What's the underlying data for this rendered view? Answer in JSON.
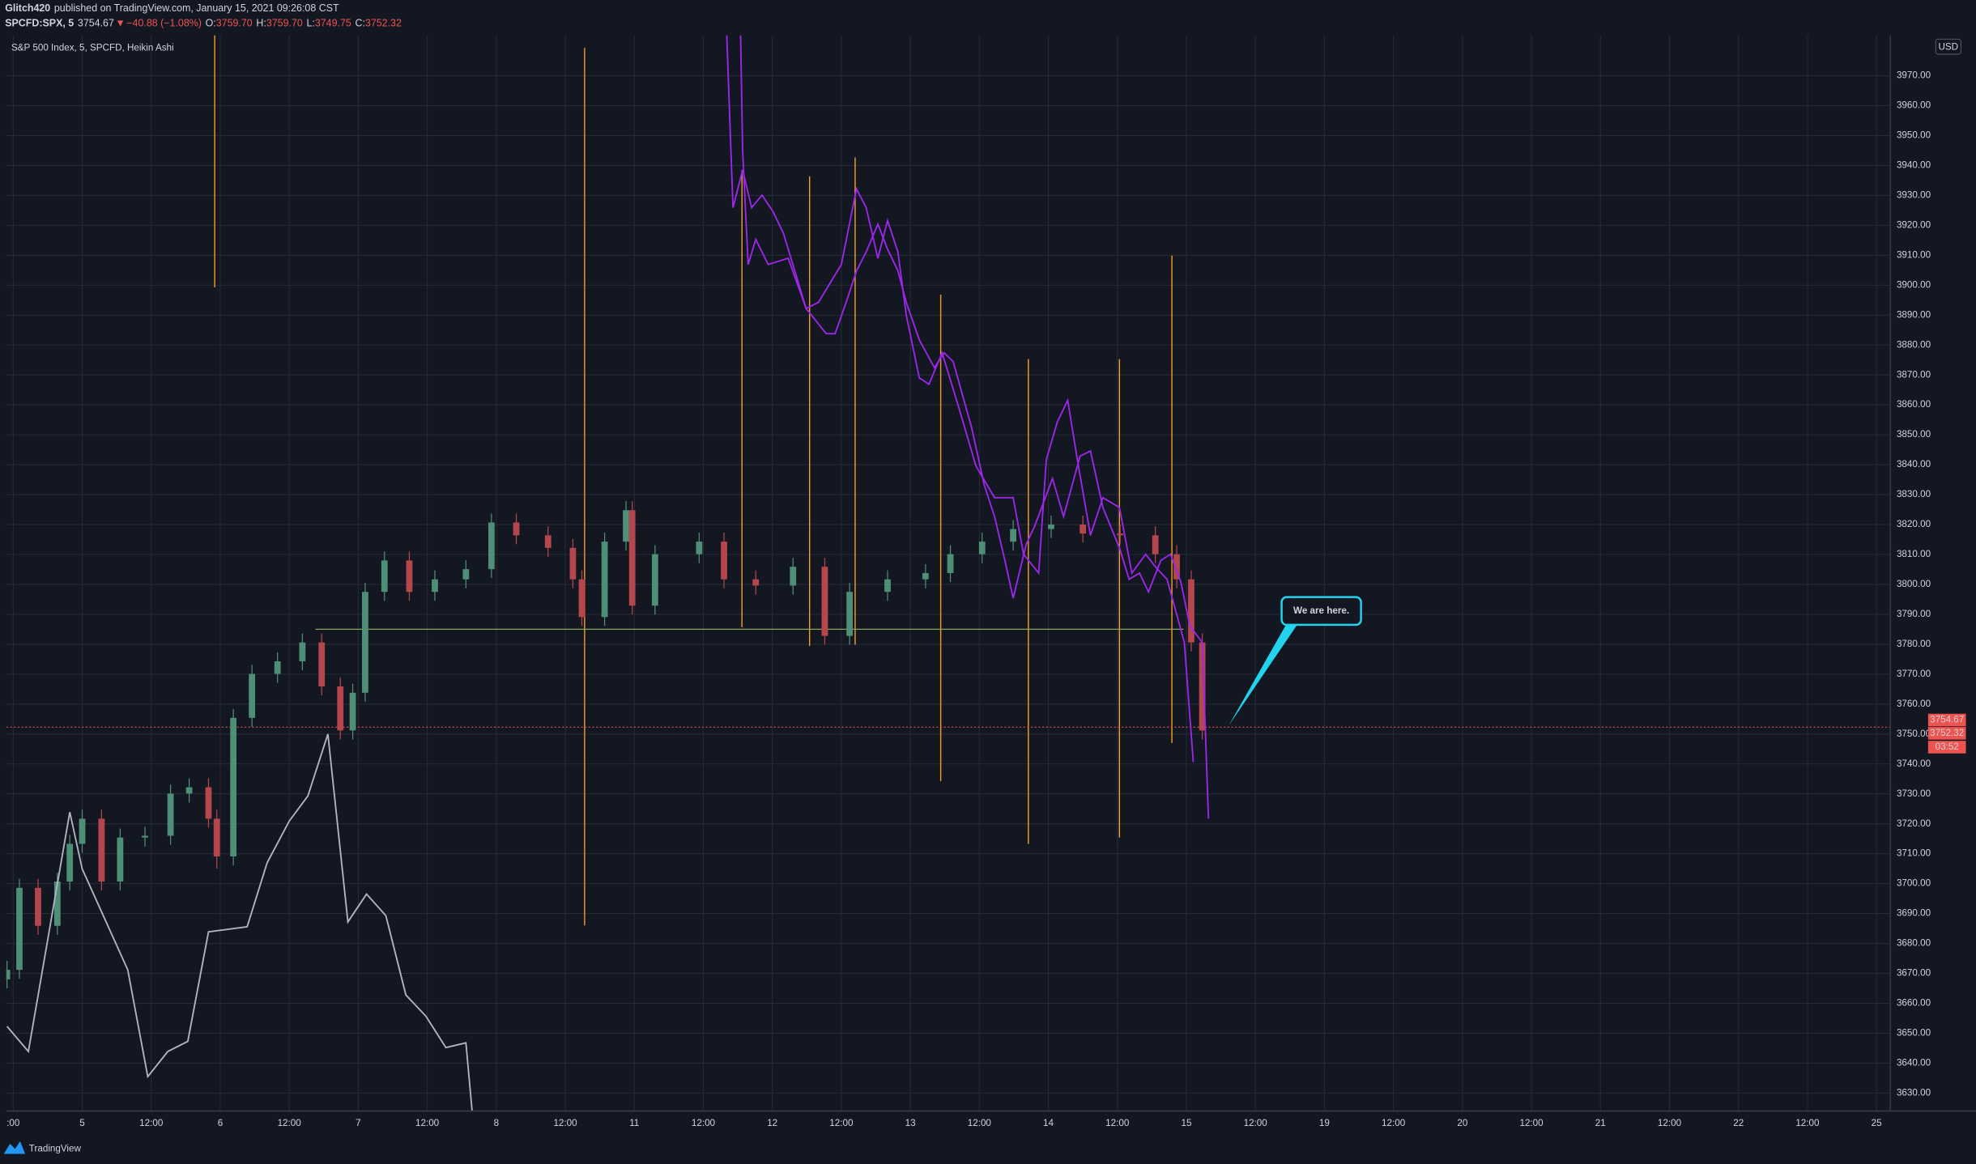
{
  "header": {
    "author": "Glitch420",
    "published": "published on TradingView.com, January 15, 2021 09:26:08 CST",
    "symbol": "SPCFD:SPX, 5",
    "price": "3754.67",
    "change": "−40.88 (−1.08%)",
    "ohlc": [
      [
        "O:",
        "3759.70"
      ],
      [
        "H:",
        "3759.70"
      ],
      [
        "L:",
        "3749.75"
      ],
      [
        "C:",
        "3752.32"
      ]
    ]
  },
  "footer": {
    "brand": "TradingView"
  },
  "chart_data": {
    "type": "candlestick",
    "title": "S&P 500 Index, 5, SPCFD, Heikin Ashi",
    "currency": "USD",
    "annotation": "We are here.",
    "countdown": "03:52",
    "grid": true,
    "xlim": [
      -0.1,
      27.2
    ],
    "ylim": [
      3624,
      3983.5
    ],
    "xticks": [
      {
        "value": 0,
        "label": ":00"
      },
      {
        "value": 1,
        "label": "5"
      },
      {
        "value": 2,
        "label": "12:00"
      },
      {
        "value": 3,
        "label": "6"
      },
      {
        "value": 4,
        "label": "12:00"
      },
      {
        "value": 5,
        "label": "7"
      },
      {
        "value": 6,
        "label": "12:00"
      },
      {
        "value": 7,
        "label": "8"
      },
      {
        "value": 8,
        "label": "12:00"
      },
      {
        "value": 9,
        "label": "11"
      },
      {
        "value": 10,
        "label": "12:00"
      },
      {
        "value": 11,
        "label": "12"
      },
      {
        "value": 12,
        "label": "12:00"
      },
      {
        "value": 13,
        "label": "13"
      },
      {
        "value": 14,
        "label": "12:00"
      },
      {
        "value": 15,
        "label": "14"
      },
      {
        "value": 16,
        "label": "12:00"
      },
      {
        "value": 17,
        "label": "15"
      },
      {
        "value": 18,
        "label": "12:00"
      },
      {
        "value": 19,
        "label": "19"
      },
      {
        "value": 20,
        "label": "12:00"
      },
      {
        "value": 21,
        "label": "20"
      },
      {
        "value": 22,
        "label": "12:00"
      },
      {
        "value": 23,
        "label": "21"
      },
      {
        "value": 24,
        "label": "12:00"
      },
      {
        "value": 25,
        "label": "22"
      },
      {
        "value": 26,
        "label": "12:00"
      },
      {
        "value": 27,
        "label": "25"
      }
    ],
    "yticks": [
      {
        "value": 3630,
        "label": "3630.00"
      },
      {
        "value": 3640,
        "label": "3640.00"
      },
      {
        "value": 3650,
        "label": "3650.00"
      },
      {
        "value": 3660,
        "label": "3660.00"
      },
      {
        "value": 3670,
        "label": "3670.00"
      },
      {
        "value": 3680,
        "label": "3680.00"
      },
      {
        "value": 3690,
        "label": "3690.00"
      },
      {
        "value": 3700,
        "label": "3700.00"
      },
      {
        "value": 3710,
        "label": "3710.00"
      },
      {
        "value": 3720,
        "label": "3720.00"
      },
      {
        "value": 3730,
        "label": "3730.00"
      },
      {
        "value": 3740,
        "label": "3740.00"
      },
      {
        "value": 3750,
        "label": "3750.00"
      },
      {
        "value": 3760,
        "label": "3760.00"
      },
      {
        "value": 3770,
        "label": "3770.00"
      },
      {
        "value": 3780,
        "label": "3780.00"
      },
      {
        "value": 3790,
        "label": "3790.00"
      },
      {
        "value": 3800,
        "label": "3800.00"
      },
      {
        "value": 3810,
        "label": "3810.00"
      },
      {
        "value": 3820,
        "label": "3820.00"
      },
      {
        "value": 3830,
        "label": "3830.00"
      },
      {
        "value": 3840,
        "label": "3840.00"
      },
      {
        "value": 3850,
        "label": "3850.00"
      },
      {
        "value": 3860,
        "label": "3860.00"
      },
      {
        "value": 3870,
        "label": "3870.00"
      },
      {
        "value": 3880,
        "label": "3880.00"
      },
      {
        "value": 3890,
        "label": "3890.00"
      },
      {
        "value": 3900,
        "label": "3900.00"
      },
      {
        "value": 3910,
        "label": "3910.00"
      },
      {
        "value": 3920,
        "label": "3920.00"
      },
      {
        "value": 3930,
        "label": "3930.00"
      },
      {
        "value": 3940,
        "label": "3940.00"
      },
      {
        "value": 3950,
        "label": "3950.00"
      },
      {
        "value": 3960,
        "label": "3960.00"
      },
      {
        "value": 3970,
        "label": "3970.00"
      }
    ],
    "candles": {
      "up_color": "#4f8f77",
      "down_color": "#b4464c",
      "x": [
        -0.09,
        0.09,
        0.36,
        0.64,
        0.82,
        1.0,
        1.28,
        1.55,
        1.91,
        2.28,
        2.55,
        2.83,
        2.95,
        3.19,
        3.46,
        3.83,
        4.19,
        4.47,
        4.74,
        4.92,
        5.1,
        5.38,
        5.74,
        6.11,
        6.56,
        6.93,
        7.29,
        7.75,
        8.11,
        8.24,
        8.57,
        8.88,
        8.97,
        9.3,
        9.94,
        10.3,
        10.76,
        11.3,
        11.76,
        12.12,
        12.67,
        13.22,
        13.58,
        14.04,
        14.49,
        15.04,
        15.5,
        16.04,
        16.55,
        16.86,
        17.07,
        17.23
      ],
      "open": [
        3668.0,
        3671.2,
        3698.6,
        3685.9,
        3700.7,
        3713.3,
        3721.7,
        3700.7,
        3715.4,
        3716.0,
        3730.1,
        3732.2,
        3721.7,
        3709.1,
        3755.4,
        3770.1,
        3774.3,
        3780.6,
        3765.9,
        3751.2,
        3763.8,
        3797.5,
        3808.0,
        3797.5,
        3801.7,
        3805.1,
        3820.7,
        3816.4,
        3812.2,
        3801.7,
        3789.1,
        3814.3,
        3824.8,
        3792.9,
        3810.1,
        3814.3,
        3801.7,
        3799.6,
        3805.9,
        3782.8,
        3797.5,
        3801.7,
        3803.8,
        3810.1,
        3814.3,
        3818.5,
        3820.0,
        3817.0,
        3816.4,
        3810.1,
        3801.7,
        3780.6
      ],
      "high": [
        3674.2,
        3701.6,
        3701.6,
        3703.7,
        3716.3,
        3724.7,
        3724.7,
        3718.4,
        3719.0,
        3733.1,
        3735.2,
        3735.2,
        3724.7,
        3758.4,
        3773.1,
        3777.3,
        3783.6,
        3783.6,
        3768.9,
        3766.8,
        3800.5,
        3811.0,
        3811.0,
        3804.7,
        3808.1,
        3823.7,
        3823.7,
        3819.4,
        3815.2,
        3804.7,
        3817.3,
        3827.8,
        3827.8,
        3813.1,
        3817.3,
        3817.3,
        3804.7,
        3808.9,
        3808.9,
        3800.5,
        3804.7,
        3806.8,
        3813.1,
        3817.3,
        3821.5,
        3823.0,
        3823.0,
        3820.0,
        3819.4,
        3813.1,
        3804.7,
        3783.6
      ],
      "low": [
        3665.0,
        3668.2,
        3682.9,
        3682.9,
        3697.7,
        3710.3,
        3697.7,
        3697.7,
        3712.4,
        3713.0,
        3727.1,
        3718.7,
        3705.0,
        3706.1,
        3752.4,
        3767.1,
        3771.3,
        3762.9,
        3748.2,
        3748.2,
        3760.8,
        3794.5,
        3794.5,
        3794.5,
        3798.7,
        3802.1,
        3813.4,
        3809.2,
        3798.7,
        3786.1,
        3786.1,
        3811.3,
        3789.9,
        3789.9,
        3807.1,
        3798.7,
        3796.6,
        3796.6,
        3779.8,
        3779.8,
        3794.5,
        3798.7,
        3800.8,
        3807.1,
        3811.3,
        3815.5,
        3814.0,
        3813.4,
        3807.1,
        3798.7,
        3777.6,
        3748.2
      ],
      "close": [
        3671.2,
        3698.6,
        3685.9,
        3700.7,
        3713.3,
        3721.7,
        3700.7,
        3715.4,
        3716.0,
        3730.1,
        3732.2,
        3721.7,
        3709.1,
        3755.4,
        3770.1,
        3774.3,
        3780.6,
        3765.9,
        3751.2,
        3763.8,
        3797.5,
        3808.0,
        3797.5,
        3801.7,
        3805.1,
        3820.7,
        3816.4,
        3812.2,
        3801.7,
        3789.1,
        3814.3,
        3824.8,
        3792.9,
        3810.1,
        3814.3,
        3801.7,
        3799.6,
        3805.9,
        3782.8,
        3797.5,
        3801.7,
        3803.8,
        3810.1,
        3814.3,
        3818.5,
        3820.0,
        3817.0,
        3816.4,
        3810.1,
        3801.7,
        3780.6,
        3751.2
      ]
    },
    "lines": [
      {
        "color": "#b2b5be",
        "x": [
          -0.09,
          0.22,
          0.82,
          1.0,
          1.37,
          1.66,
          1.95,
          2.24,
          2.53,
          2.83,
          3.39,
          3.68,
          4.0,
          4.27,
          4.56,
          4.85,
          5.12,
          5.4,
          5.69,
          5.98,
          6.27,
          6.56,
          6.65
        ],
        "values": [
          3652.3,
          3643.9,
          3723.9,
          3704.9,
          3686.0,
          3671.2,
          3635.5,
          3643.9,
          3647.3,
          3683.9,
          3685.6,
          3707.0,
          3720.9,
          3729.3,
          3750.0,
          3687.2,
          3696.5,
          3689.3,
          3662.8,
          3655.7,
          3645.2,
          3646.8,
          3624.0
        ]
      },
      {
        "color": "#9c27e8",
        "x": [
          10.34,
          10.43,
          10.57,
          10.7,
          10.85,
          11.01,
          11.16,
          11.49,
          11.67,
          12.0,
          12.22,
          12.36,
          12.53,
          12.67,
          12.82,
          12.94,
          13.13,
          13.27,
          13.46,
          13.71,
          13.95,
          14.22,
          14.49,
          14.64,
          14.86,
          14.97,
          15.13,
          15.28,
          15.42,
          15.61,
          15.79,
          16.03,
          16.21,
          16.41,
          16.55,
          16.72,
          16.87,
          16.97,
          17.1
        ],
        "values": [
          3983.5,
          3925.9,
          3938.5,
          3925.9,
          3930.1,
          3924.6,
          3917.4,
          3892.2,
          3894.3,
          3906.9,
          3932.2,
          3925.9,
          3909.0,
          3921.6,
          3911.1,
          3890.1,
          3869.0,
          3866.9,
          3877.4,
          3858.5,
          3839.6,
          3829.0,
          3829.0,
          3810.1,
          3803.8,
          3841.7,
          3854.3,
          3861.5,
          3841.7,
          3816.4,
          3829.0,
          3825.7,
          3803.8,
          3810.1,
          3805.9,
          3801.7,
          3789.1,
          3780.6,
          3740.6
        ]
      },
      {
        "color": "#9c27e8",
        "x": [
          10.54,
          10.57,
          10.65,
          10.76,
          10.94,
          11.23,
          11.49,
          11.78,
          11.91,
          12.07,
          12.22,
          12.36,
          12.53,
          12.67,
          12.82,
          12.94,
          13.13,
          13.35,
          13.49,
          13.62,
          13.89,
          14.07,
          14.22,
          14.37,
          14.49,
          14.68,
          14.8,
          15.06,
          15.22,
          15.46,
          15.61,
          15.79,
          16.03,
          16.17,
          16.32,
          16.45,
          16.63,
          16.77,
          16.92,
          17.05,
          17.23,
          17.32
        ],
        "values": [
          3983.5,
          3944.8,
          3906.9,
          3915.3,
          3906.9,
          3909.0,
          3892.2,
          3883.8,
          3883.8,
          3894.3,
          3904.8,
          3911.1,
          3920.4,
          3912.0,
          3904.8,
          3894.3,
          3881.7,
          3872.4,
          3877.4,
          3874.5,
          3852.2,
          3833.3,
          3822.7,
          3808.0,
          3795.4,
          3813.5,
          3819.4,
          3835.4,
          3822.7,
          3842.9,
          3844.6,
          3825.7,
          3812.2,
          3801.7,
          3803.8,
          3797.5,
          3808.0,
          3810.1,
          3800.8,
          3786.1,
          3780.6,
          3721.7
        ]
      }
    ],
    "vlines": {
      "color": "#f5a023",
      "x": [
        2.92,
        8.28,
        10.56,
        11.54,
        12.2,
        13.44,
        14.71,
        16.03,
        16.79
      ],
      "top": [
        3983.5,
        3979.3,
        3938.5,
        3936.4,
        3942.7,
        3896.8,
        3875.3,
        3875.3,
        3909.9
      ],
      "bottom": [
        3899.3,
        3686.0,
        3785.7,
        3779.4,
        3779.8,
        3734.3,
        3713.3,
        3715.4,
        3747.0
      ]
    },
    "hline": {
      "color": "#8aa55f",
      "value": 3785,
      "x": [
        4.38,
        16.96
      ]
    },
    "price_line": {
      "color": "#ef5350",
      "value": 3752.32
    },
    "price_labels": [
      3754.67,
      3752.32
    ],
    "price_label_color": "#ef5350"
  }
}
